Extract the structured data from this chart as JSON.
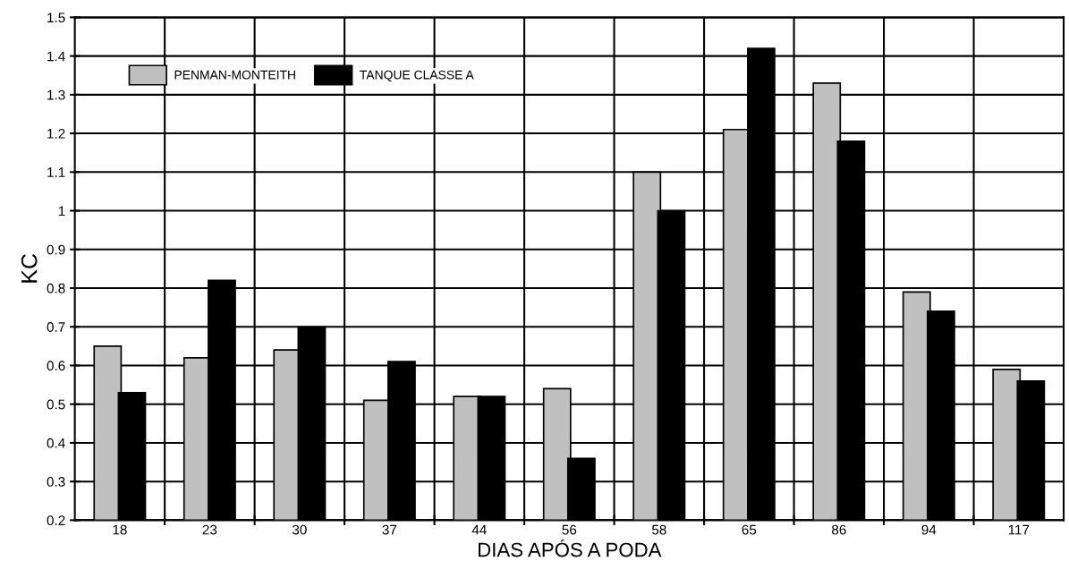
{
  "chart_data": {
    "type": "bar",
    "xlabel": "DIAS APÓS A PODA",
    "ylabel": "KC",
    "categories": [
      "18",
      "23",
      "30",
      "37",
      "44",
      "56",
      "58",
      "65",
      "86",
      "94",
      "117"
    ],
    "series": [
      {
        "name": "PENMAN-MONTEITH",
        "color": "#c0c0c0",
        "values": [
          0.65,
          0.62,
          0.64,
          0.51,
          0.52,
          0.54,
          1.1,
          1.21,
          1.33,
          0.79,
          0.59
        ]
      },
      {
        "name": "TANQUE CLASSE A",
        "color": "#000000",
        "values": [
          0.53,
          0.82,
          0.7,
          0.61,
          0.52,
          0.36,
          1.0,
          1.42,
          1.18,
          0.74,
          0.56
        ]
      }
    ],
    "ylim": [
      0.2,
      1.5
    ],
    "yticks": [
      0.2,
      0.3,
      0.4,
      0.5,
      0.6,
      0.7,
      0.8,
      0.9,
      1,
      1.1,
      1.2,
      1.3,
      1.4,
      1.5
    ],
    "grid": true,
    "legend": "top left"
  }
}
